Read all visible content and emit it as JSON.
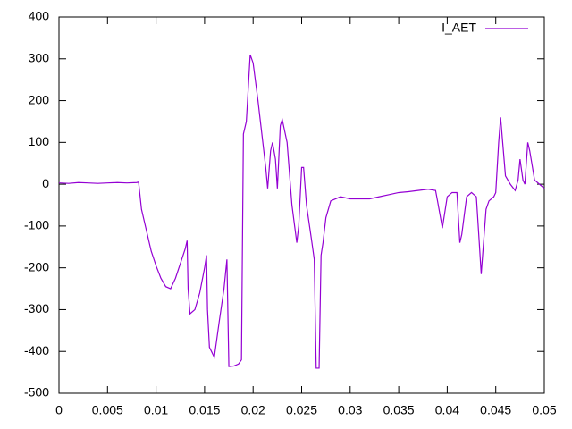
{
  "chart_data": {
    "type": "line",
    "series": [
      {
        "name": "I_AET",
        "color": "#9400d3",
        "x": [
          0,
          0.001,
          0.002,
          0.003,
          0.004,
          0.005,
          0.006,
          0.007,
          0.008,
          0.0082,
          0.0085,
          0.009,
          0.0095,
          0.01,
          0.0105,
          0.011,
          0.0115,
          0.012,
          0.0125,
          0.013,
          0.0132,
          0.0133,
          0.0135,
          0.014,
          0.0145,
          0.015,
          0.0152,
          0.0153,
          0.0155,
          0.016,
          0.0165,
          0.017,
          0.0173,
          0.0175,
          0.018,
          0.0185,
          0.0188,
          0.019,
          0.0193,
          0.0197,
          0.02,
          0.0205,
          0.021,
          0.0213,
          0.0215,
          0.0218,
          0.022,
          0.0223,
          0.0225,
          0.0228,
          0.023,
          0.0235,
          0.024,
          0.0245,
          0.0247,
          0.025,
          0.0252,
          0.0255,
          0.026,
          0.0263,
          0.0265,
          0.0268,
          0.027,
          0.0272,
          0.0275,
          0.028,
          0.029,
          0.03,
          0.031,
          0.032,
          0.033,
          0.034,
          0.035,
          0.036,
          0.037,
          0.038,
          0.0388,
          0.039,
          0.0395,
          0.04,
          0.0405,
          0.041,
          0.0413,
          0.0415,
          0.042,
          0.0425,
          0.043,
          0.0433,
          0.0435,
          0.044,
          0.0443,
          0.0448,
          0.045,
          0.0453,
          0.0455,
          0.046,
          0.0465,
          0.047,
          0.0473,
          0.0475,
          0.0478,
          0.048,
          0.0483,
          0.0485,
          0.049,
          0.0495,
          0.05
        ],
        "values": [
          3,
          2,
          4,
          3,
          2,
          3,
          4,
          3,
          4,
          5,
          -60,
          -110,
          -160,
          -195,
          -225,
          -245,
          -250,
          -225,
          -190,
          -155,
          -135,
          -250,
          -310,
          -300,
          -260,
          -200,
          -170,
          -300,
          -390,
          -414,
          -330,
          -250,
          -180,
          -436,
          -435,
          -430,
          -420,
          120,
          150,
          310,
          290,
          200,
          100,
          40,
          -10,
          80,
          100,
          60,
          -10,
          140,
          155,
          100,
          -50,
          -140,
          -100,
          40,
          40,
          -50,
          -130,
          -180,
          -440,
          -440,
          -170,
          -140,
          -80,
          -40,
          -30,
          -35,
          -35,
          -35,
          -30,
          -25,
          -20,
          -18,
          -15,
          -12,
          -15,
          -40,
          -105,
          -30,
          -20,
          -20,
          -140,
          -120,
          -30,
          -20,
          -30,
          -140,
          -215,
          -60,
          -40,
          -30,
          -20,
          100,
          160,
          20,
          0,
          -15,
          10,
          60,
          10,
          0,
          100,
          80,
          10,
          0,
          -10
        ]
      }
    ],
    "xlim": [
      0,
      0.05
    ],
    "xticks": [
      0,
      0.005,
      0.01,
      0.015,
      0.02,
      0.025,
      0.03,
      0.035,
      0.04,
      0.045,
      0.05
    ],
    "ylim": [
      -500,
      400
    ],
    "yticks": [
      -500,
      -400,
      -300,
      -200,
      -100,
      0,
      100,
      200,
      300,
      400
    ],
    "legend": "top-right"
  }
}
